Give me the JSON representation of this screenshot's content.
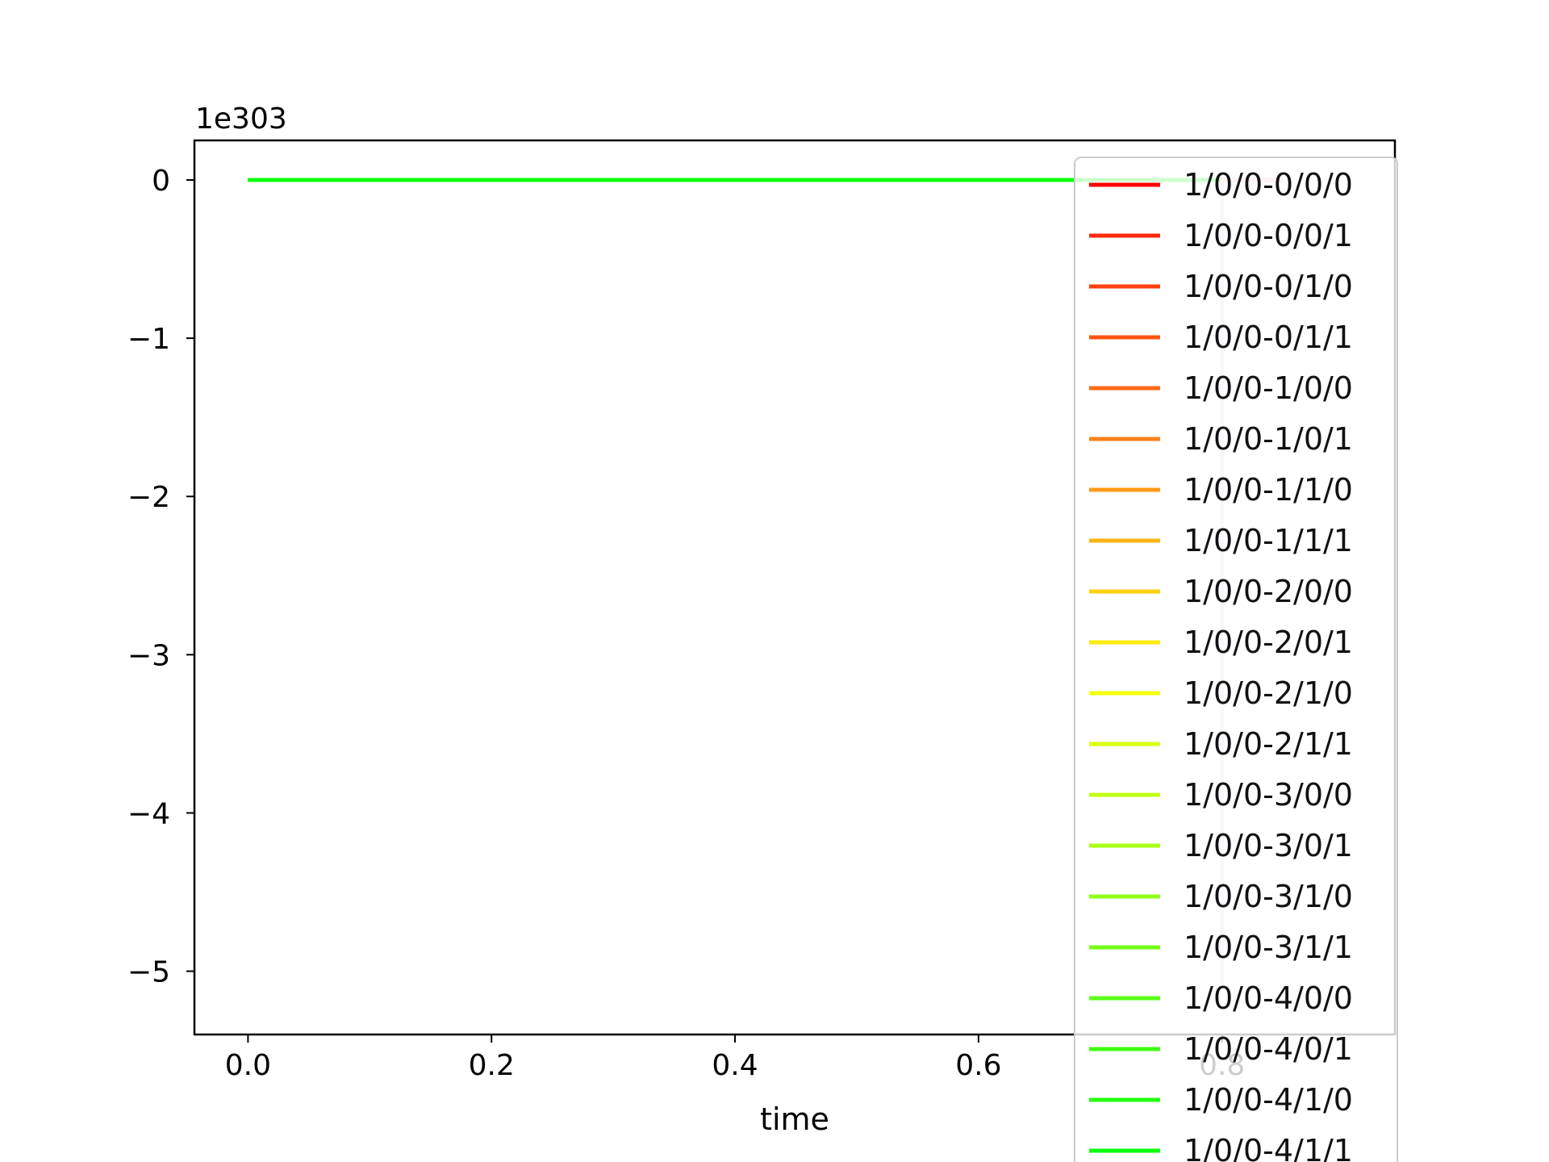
{
  "chart_data": {
    "type": "line",
    "title": "",
    "xlabel": "time",
    "ylabel": "",
    "y_offset_text": "1e303",
    "xlim": [
      -0.044,
      0.942
    ],
    "ylim": [
      -5.4,
      0.25
    ],
    "x_ticks": [
      0.0,
      0.2,
      0.4,
      0.6,
      0.8
    ],
    "x_tick_labels": [
      "0.0",
      "0.2",
      "0.4",
      "0.6",
      "0.8"
    ],
    "y_ticks": [
      0,
      -1,
      -2,
      -3,
      -4,
      -5
    ],
    "y_tick_labels": [
      "0",
      "−1",
      "−2",
      "−3",
      "−4",
      "−5"
    ],
    "grid": false,
    "legend_position": "upper right",
    "x": [
      0.0,
      0.1,
      0.2,
      0.3,
      0.4,
      0.5,
      0.6,
      0.7,
      0.8,
      0.85
    ],
    "dive": {
      "x": 0.8,
      "y_min": -5.1,
      "color": "#e8ccf6"
    },
    "series": [
      {
        "name": "1/0/0-0/0/0",
        "color": "#ff0000",
        "values": [
          0,
          0,
          0,
          0,
          0,
          0,
          0,
          0,
          0,
          0
        ]
      },
      {
        "name": "1/0/0-0/0/1",
        "color": "#ff2a0a",
        "values": [
          0,
          0,
          0,
          0,
          0,
          0,
          0,
          0,
          0,
          0
        ]
      },
      {
        "name": "1/0/0-0/1/0",
        "color": "#ff3f0f",
        "values": [
          0,
          0,
          0,
          0,
          0,
          0,
          0,
          0,
          0,
          0
        ]
      },
      {
        "name": "1/0/0-0/1/1",
        "color": "#ff5512",
        "values": [
          0,
          0,
          0,
          0,
          0,
          0,
          0,
          0,
          0,
          0
        ]
      },
      {
        "name": "1/0/0-1/0/0",
        "color": "#ff6a17",
        "values": [
          0,
          0,
          0,
          0,
          0,
          0,
          0,
          0,
          0,
          0
        ]
      },
      {
        "name": "1/0/0-1/0/1",
        "color": "#ff8018",
        "values": [
          0,
          0,
          0,
          0,
          0,
          0,
          0,
          0,
          0,
          0
        ]
      },
      {
        "name": "1/0/0-1/1/0",
        "color": "#ff9a16",
        "values": [
          0,
          0,
          0,
          0,
          0,
          0,
          0,
          0,
          0,
          0
        ]
      },
      {
        "name": "1/0/0-1/1/1",
        "color": "#ffb514",
        "values": [
          0,
          0,
          0,
          0,
          0,
          0,
          0,
          0,
          0,
          0
        ]
      },
      {
        "name": "1/0/0-2/0/0",
        "color": "#ffd012",
        "values": [
          0,
          0,
          0,
          0,
          0,
          0,
          0,
          0,
          0,
          0
        ]
      },
      {
        "name": "1/0/0-2/0/1",
        "color": "#ffea0e",
        "values": [
          0,
          0,
          0,
          0,
          0,
          0,
          0,
          0,
          0,
          0
        ]
      },
      {
        "name": "1/0/0-2/1/0",
        "color": "#f4ff0c",
        "values": [
          0,
          0,
          0,
          0,
          0,
          0,
          0,
          0,
          0,
          0
        ]
      },
      {
        "name": "1/0/0-2/1/1",
        "color": "#dbff0f",
        "values": [
          0,
          0,
          0,
          0,
          0,
          0,
          0,
          0,
          0,
          0
        ]
      },
      {
        "name": "1/0/0-3/0/0",
        "color": "#c2ff14",
        "values": [
          0,
          0,
          0,
          0,
          0,
          0,
          0,
          0,
          0,
          0
        ]
      },
      {
        "name": "1/0/0-3/0/1",
        "color": "#a8ff18",
        "values": [
          0,
          0,
          0,
          0,
          0,
          0,
          0,
          0,
          0,
          0
        ]
      },
      {
        "name": "1/0/0-3/1/0",
        "color": "#8eff18",
        "values": [
          0,
          0,
          0,
          0,
          0,
          0,
          0,
          0,
          0,
          0
        ]
      },
      {
        "name": "1/0/0-3/1/1",
        "color": "#74ff16",
        "values": [
          0,
          0,
          0,
          0,
          0,
          0,
          0,
          0,
          0,
          0
        ]
      },
      {
        "name": "1/0/0-4/0/0",
        "color": "#5aff14",
        "values": [
          0,
          0,
          0,
          0,
          0,
          0,
          0,
          0,
          0,
          0
        ]
      },
      {
        "name": "1/0/0-4/0/1",
        "color": "#3eff12",
        "values": [
          0,
          0,
          0,
          0,
          0,
          0,
          0,
          0,
          0,
          0
        ]
      },
      {
        "name": "1/0/0-4/1/0",
        "color": "#24ff10",
        "values": [
          0,
          0,
          0,
          0,
          0,
          0,
          0,
          0,
          0,
          0
        ]
      },
      {
        "name": "1/0/0-4/1/1",
        "color": "#0aff0e",
        "values": [
          0,
          0,
          0,
          0,
          0,
          0,
          0,
          0,
          0,
          0
        ]
      }
    ]
  }
}
